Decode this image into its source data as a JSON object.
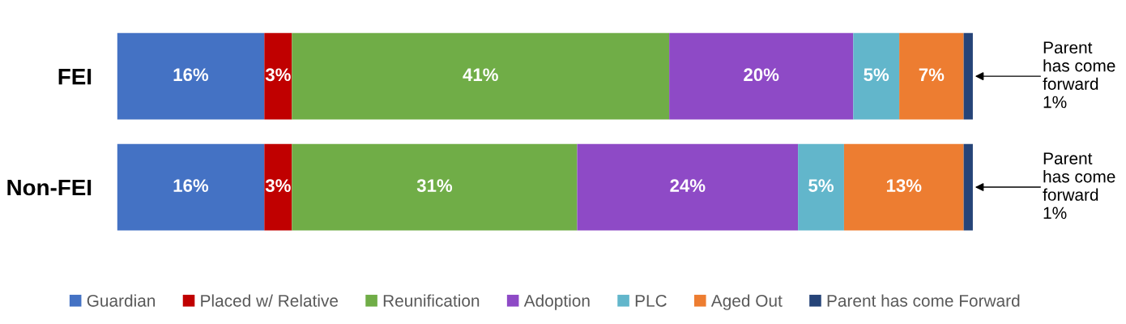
{
  "chart_data": {
    "type": "bar",
    "orientation": "horizontal",
    "stacked": true,
    "categories": [
      "FEI",
      "Non-FEI"
    ],
    "series": [
      {
        "name": "Guardian",
        "color": "#4472c4",
        "values": [
          16,
          16
        ],
        "value_labels": [
          "16%",
          "16%"
        ]
      },
      {
        "name": "Placed w/ Relative",
        "color": "#c00000",
        "values": [
          3,
          3
        ],
        "value_labels": [
          "3%",
          "3%"
        ]
      },
      {
        "name": "Reunification",
        "color": "#70ad47",
        "values": [
          41,
          31
        ],
        "value_labels": [
          "41%",
          "31%"
        ]
      },
      {
        "name": "Adoption",
        "color": "#8e4ac6",
        "values": [
          20,
          24
        ],
        "value_labels": [
          "20%",
          "24%"
        ]
      },
      {
        "name": "PLC",
        "color": "#62b6cb",
        "values": [
          5,
          5
        ],
        "value_labels": [
          "5%",
          "5%"
        ]
      },
      {
        "name": "Aged Out",
        "color": "#ed7d31",
        "values": [
          7,
          13
        ],
        "value_labels": [
          "7%",
          "13%"
        ]
      },
      {
        "name": "Parent has come Forward",
        "color": "#264478",
        "values": [
          1,
          1
        ],
        "value_labels": [
          null,
          null
        ]
      }
    ],
    "annotations": [
      {
        "text": "Parent\nhas come\nforward\n1%",
        "x": 93,
        "y": "FEI"
      },
      {
        "text": "Parent\nhas come\nforward\n1%",
        "x": 93,
        "y": "Non-FEI"
      }
    ],
    "legend": "bottom",
    "grid": false
  }
}
